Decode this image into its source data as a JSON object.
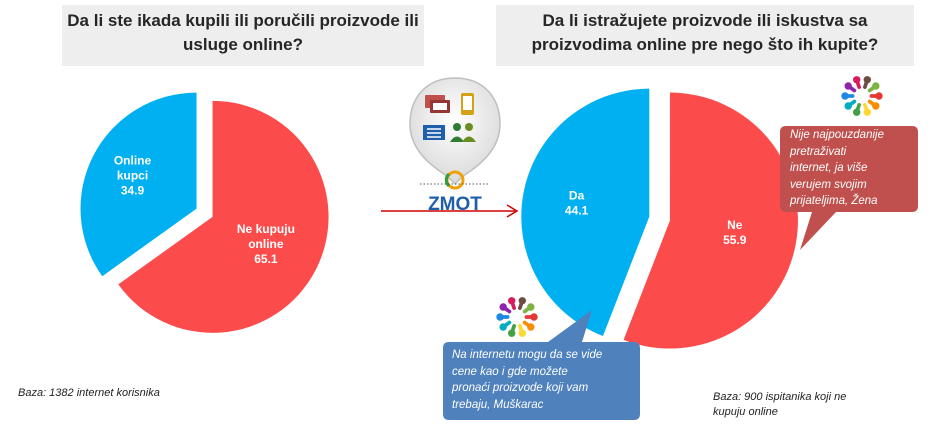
{
  "colors": {
    "red": "#fb4b4b",
    "blue": "#00b0f0",
    "callout_red": "#c0504d",
    "callout_blue": "#4f81bd",
    "title_bg": "#eeeeee",
    "arrow": "#d00000"
  },
  "left": {
    "title_lines": [
      "Da li ste ikada kupili ili poručili proizvode ili",
      "usluge online?"
    ],
    "note": "Baza: 1382 internet korisnika"
  },
  "right": {
    "title_lines": [
      "Da li istražujete proizvode ili iskustva sa",
      "proizvodima online pre nego što ih kupite?"
    ],
    "note_lines": [
      "Baza: 900 ispitanika koji ne",
      "kupuju online"
    ],
    "callout_red_lines": [
      "Nije najpouzdanije",
      "pretraživati",
      "internet, ja više",
      "verujem svojim",
      "prijateljima, Žena"
    ],
    "callout_blue_lines": [
      "Na internetu mogu da se vide",
      "cene kao i gde možete",
      "pronaći proizvode koji vam",
      "trebaju, Muškarac"
    ]
  },
  "center_logo": {
    "text": "ZMOT",
    "icon": "zmot-logo-icon"
  },
  "chart_data": [
    {
      "type": "pie",
      "title": "Da li ste ikada kupili ili poručili proizvode ili usluge online?",
      "slices": [
        {
          "label_lines": [
            "Ne kupuju",
            "online"
          ],
          "value": 65.1,
          "value_text": "65.1",
          "color": "#fb4b4b"
        },
        {
          "label_lines": [
            "Online",
            "kupci"
          ],
          "value": 34.9,
          "value_text": "34.9",
          "color": "#00b0f0"
        }
      ]
    },
    {
      "type": "pie",
      "title": "Da li istražujete proizvode ili iskustva sa proizvodima online pre nego što ih kupite?",
      "slices": [
        {
          "label_lines": [
            "Ne"
          ],
          "value": 55.9,
          "value_text": "55.9",
          "color": "#fb4b4b"
        },
        {
          "label_lines": [
            "Da"
          ],
          "value": 44.1,
          "value_text": "44.1",
          "color": "#00b0f0"
        }
      ]
    }
  ]
}
